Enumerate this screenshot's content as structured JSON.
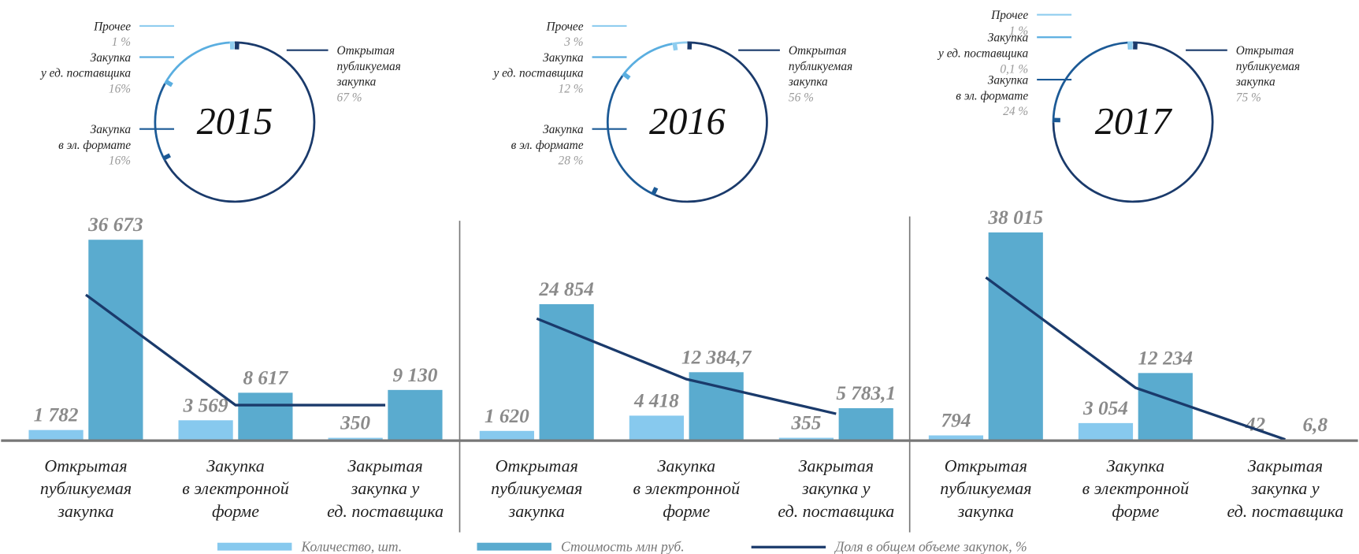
{
  "chart_data": [
    {
      "type": "pie",
      "title": "2015",
      "categories": [
        "Открытая\nпубликуемая\nзакупка",
        "Закупка\nв эл. формате",
        "Закупка\nу ед. поставщика",
        "Прочее"
      ],
      "values": [
        67,
        16,
        16,
        1
      ],
      "value_labels": [
        "67 %",
        "16%",
        "16%",
        "1 %"
      ],
      "colors": [
        "#1a3a6b",
        "#1c5a96",
        "#5aaee0",
        "#8fcdef"
      ]
    },
    {
      "type": "bar",
      "categories": [
        "Открытая\nпубликуемая\nзакупка",
        "Закупка\nв электронной\nформе",
        "Закрытая\nзакупка у\nед. поставщика"
      ],
      "series": [
        {
          "name": "Количество, шт.",
          "color": "#87c9ee",
          "values": [
            1782,
            3569,
            350
          ],
          "value_labels": [
            "1 782",
            "3 569",
            "350"
          ]
        },
        {
          "name": "Стоимость млн руб.",
          "color": "#5aabcf",
          "values": [
            36673,
            8617,
            9130
          ],
          "value_labels": [
            "36 673",
            "8 617",
            "9 130"
          ]
        },
        {
          "name": "Доля в общем объеме закупок, %",
          "color": "#1a3a6b",
          "type": "line",
          "values": [
            67,
            16,
            16
          ]
        }
      ]
    },
    {
      "type": "pie",
      "title": "2016",
      "categories": [
        "Открытая\nпубликуемая\nзакупка",
        "Закупка\nв эл. формате",
        "Закупка\nу ед. поставщика",
        "Прочее"
      ],
      "values": [
        56,
        28,
        12,
        3
      ],
      "value_labels": [
        "56 %",
        "28 %",
        "12 %",
        "3 %"
      ],
      "colors": [
        "#1a3a6b",
        "#1c5a96",
        "#5aaee0",
        "#8fcdef"
      ]
    },
    {
      "type": "bar",
      "categories": [
        "Открытая\nпубликуемая\nзакупка",
        "Закупка\nв электронной\nформе",
        "Закрытая\nзакупка у\nед. поставщика"
      ],
      "series": [
        {
          "name": "Количество, шт.",
          "color": "#87c9ee",
          "values": [
            1620,
            4418,
            355
          ],
          "value_labels": [
            "1 620",
            "4 418",
            "355"
          ]
        },
        {
          "name": "Стоимость млн руб.",
          "color": "#5aabcf",
          "values": [
            24854,
            12384.7,
            5783.1
          ],
          "value_labels": [
            "24 854",
            "12 384,7",
            "5 783,1"
          ]
        },
        {
          "name": "Доля в общем объеме закупок, %",
          "color": "#1a3a6b",
          "type": "line",
          "values": [
            56,
            28,
            12
          ]
        }
      ]
    },
    {
      "type": "pie",
      "title": "2017",
      "categories": [
        "Открытая\nпубликуемая\nзакупка",
        "Закупка\nв эл. формате",
        "Закупка\nу ед. поставщика",
        "Прочее"
      ],
      "values": [
        75,
        24,
        0.1,
        1
      ],
      "value_labels": [
        "75 %",
        "24 %",
        "0,1 %",
        "1 %"
      ],
      "colors": [
        "#1a3a6b",
        "#1c5a96",
        "#5aaee0",
        "#8fcdef"
      ]
    },
    {
      "type": "bar",
      "categories": [
        "Открытая\nпубликуемая\nзакупка",
        "Закупка\nв электронной\nформе",
        "Закрытая\nзакупка у\nед. поставщика"
      ],
      "series": [
        {
          "name": "Количество, шт.",
          "color": "#87c9ee",
          "values": [
            794,
            3054,
            42
          ],
          "value_labels": [
            "794",
            "3 054",
            "42"
          ]
        },
        {
          "name": "Стоимость млн руб.",
          "color": "#5aabcf",
          "values": [
            38015,
            12234,
            6.8
          ],
          "value_labels": [
            "38 015",
            "12 234",
            "6,8"
          ]
        },
        {
          "name": "Доля в общем объеме закупок, %",
          "color": "#1a3a6b",
          "type": "line",
          "values": [
            75,
            24,
            0.1
          ]
        }
      ]
    }
  ]
}
